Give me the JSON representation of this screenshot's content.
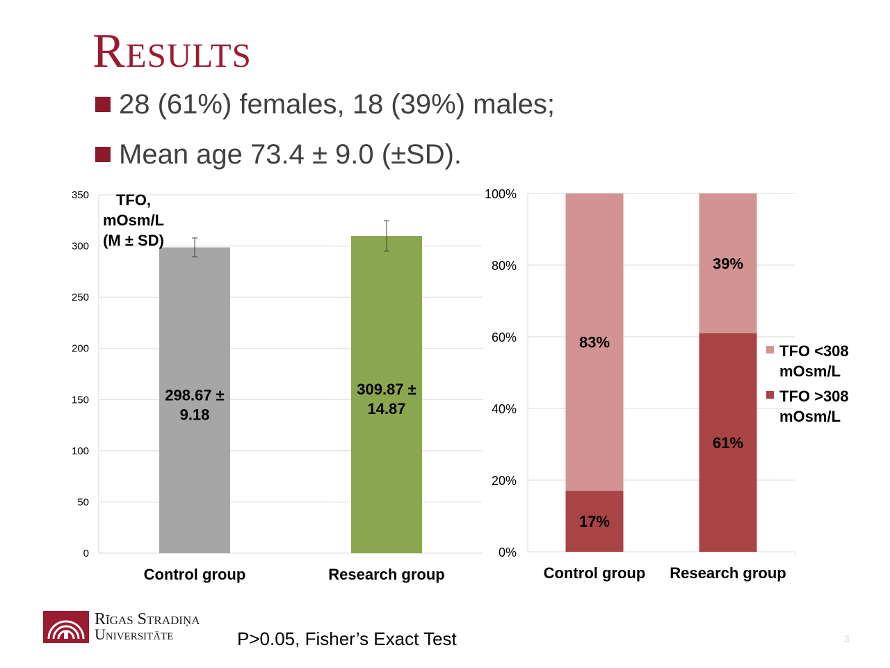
{
  "slide": {
    "title": "Results",
    "bullets": [
      "28 (61%) females, 18 (39%) males;",
      "Mean age 73.4 ± 9.0 (±SD)."
    ],
    "footnote": "P>0.05, Fisher’s Exact Test",
    "page_number": "3",
    "logo": {
      "line1": "Rīgas Stradiņa",
      "line2": "Universitāte"
    },
    "colors": {
      "title": "#9b1b30",
      "bullet": "#8b1a2b"
    }
  },
  "chart_data": [
    {
      "type": "bar",
      "categories": [
        "Control group",
        "Research group"
      ],
      "series": [
        {
          "values": [
            298.67,
            309.87
          ],
          "errors": [
            9.18,
            14.87
          ],
          "colors": [
            "#a6a6a6",
            "#8aa64e"
          ],
          "data_labels": [
            [
              "298.67 ±",
              "9.18"
            ],
            [
              "309.87 ±",
              "14.87"
            ]
          ]
        }
      ],
      "ylim": [
        0,
        350
      ],
      "yticks": [
        0,
        50,
        100,
        150,
        200,
        250,
        300,
        350
      ],
      "ylabel": [
        "TFO,",
        "mOsm/L",
        "(M ± SD)"
      ],
      "grid": true
    },
    {
      "type": "bar",
      "stacked": true,
      "percent": true,
      "categories": [
        "Control group",
        "Research group"
      ],
      "series": [
        {
          "name": "TFO >308 mOsm/L",
          "legend_lines": [
            "TFO >308",
            "mOsm/L"
          ],
          "values": [
            17,
            61
          ],
          "labels": [
            "17%",
            "61%"
          ],
          "color": "#a84444"
        },
        {
          "name": "TFO <308 mOsm/L",
          "legend_lines": [
            "TFO <308",
            "mOsm/L"
          ],
          "values": [
            83,
            39
          ],
          "labels": [
            "83%",
            "39%"
          ],
          "color": "#d39392"
        }
      ],
      "ylim": [
        0,
        100
      ],
      "yticks": [
        "0%",
        "20%",
        "40%",
        "60%",
        "80%",
        "100%"
      ],
      "legend": "right",
      "grid": true
    }
  ]
}
